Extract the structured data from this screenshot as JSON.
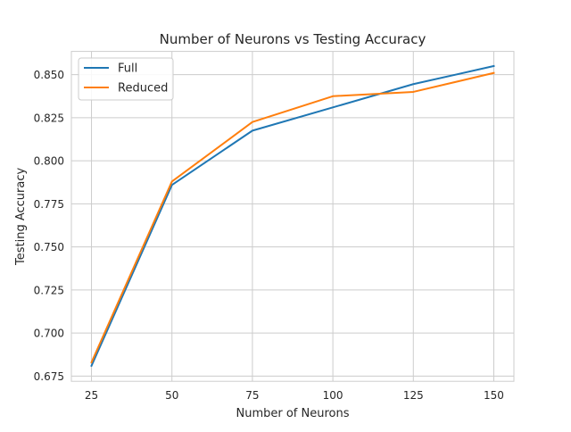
{
  "chart_data": {
    "type": "line",
    "title": "Number of Neurons vs Testing Accuracy",
    "xlabel": "Number of Neurons",
    "ylabel": "Testing Accuracy",
    "x": [
      25,
      50,
      75,
      100,
      125,
      150
    ],
    "xticks": [
      25,
      50,
      75,
      100,
      125,
      150
    ],
    "yticks": [
      0.675,
      0.7,
      0.725,
      0.75,
      0.775,
      0.8,
      0.825,
      0.85
    ],
    "ytick_labels": [
      "0.675",
      "0.700",
      "0.725",
      "0.750",
      "0.775",
      "0.800",
      "0.825",
      "0.850"
    ],
    "xlim": [
      18.75,
      156.25
    ],
    "ylim": [
      0.672,
      0.8635
    ],
    "grid": true,
    "legend_position": "top-left",
    "series": [
      {
        "name": "Full",
        "color": "#1f77b4",
        "values": [
          0.681,
          0.786,
          0.8175,
          0.831,
          0.8445,
          0.855
        ]
      },
      {
        "name": "Reduced",
        "color": "#ff7f0e",
        "values": [
          0.683,
          0.788,
          0.8225,
          0.8375,
          0.84,
          0.851
        ]
      }
    ]
  }
}
